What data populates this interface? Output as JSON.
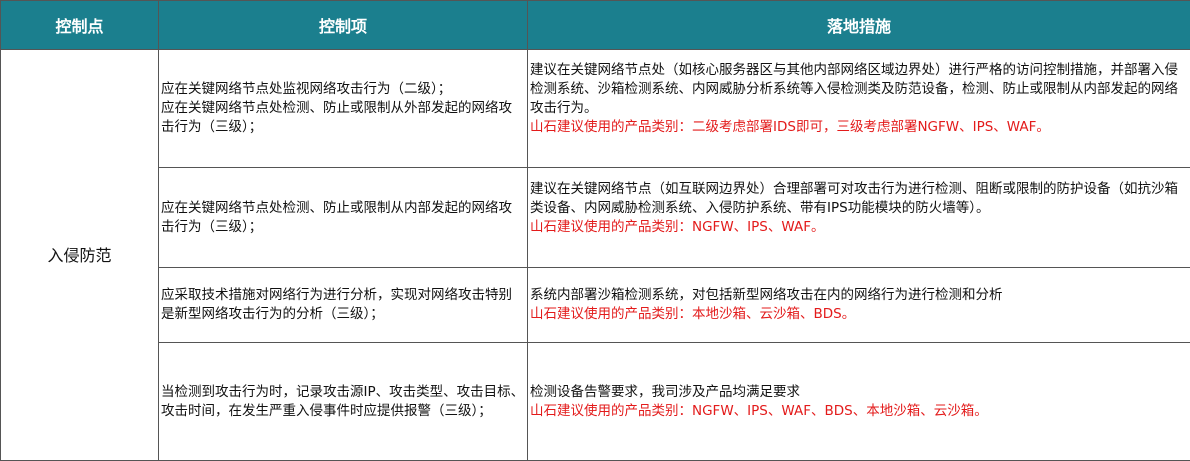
{
  "colors": {
    "header_bg": "#1b7f8e",
    "recommend_text": "#e31b1b"
  },
  "headers": [
    "控制点",
    "控制项",
    "落地措施"
  ],
  "control_point": "入侵防范",
  "rows": [
    {
      "items": [
        "应在关键网络节点处监视网络攻击行为（二级）；",
        "应在关键网络节点处检测、防止或限制从外部发起的网络攻击行为（三级）；"
      ],
      "measure": "建议在关键网络节点处（如核心服务器区与其他内部网络区域边界处）进行严格的访问控制措施，并部署入侵检测系统、沙箱检测系统、内网威胁分析系统等入侵检测类及防范设备，检测、防止或限制从内部发起的网络攻击行为。",
      "recommend": "山石建议使用的产品类别：二级考虑部署IDS即可，三级考虑部署NGFW、IPS、WAF。"
    },
    {
      "items": [
        "应在关键网络节点处检测、防止或限制从内部发起的网络攻击行为（三级）；"
      ],
      "measure": "建议在关键网络节点（如互联网边界处）合理部署可对攻击行为进行检测、阻断或限制的防护设备（如抗沙箱类设备、内网威胁检测系统、入侵防护系统、带有IPS功能模块的防火墙等）。",
      "recommend": "山石建议使用的产品类别：NGFW、IPS、WAF。"
    },
    {
      "items": [
        "应采取技术措施对网络行为进行分析，实现对网络攻击特别是新型网络攻击行为的分析（三级）；"
      ],
      "measure": "系统内部署沙箱检测系统，对包括新型网络攻击在内的网络行为进行检测和分析",
      "recommend": "山石建议使用的产品类别：本地沙箱、云沙箱、BDS。"
    },
    {
      "items": [
        "当检测到攻击行为时，记录攻击源IP、攻击类型、攻击目标、攻击时间，在发生严重入侵事件时应提供报警（三级）；"
      ],
      "measure": "检测设备告警要求，我司涉及产品均满足要求",
      "recommend": "山石建议使用的产品类别：NGFW、IPS、WAF、BDS、本地沙箱、云沙箱。"
    }
  ]
}
